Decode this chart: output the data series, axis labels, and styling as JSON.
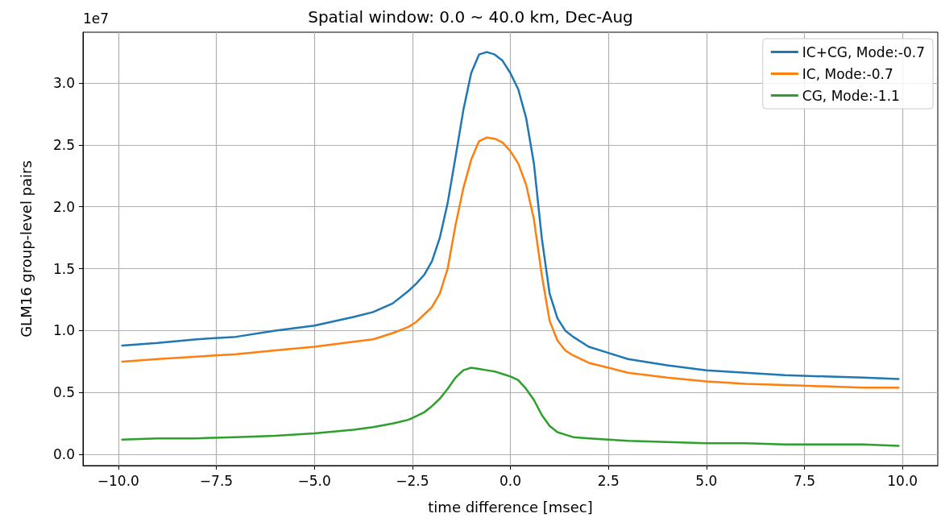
{
  "chart_data": {
    "type": "line",
    "title": "Spatial window: 0.0 ~ 40.0 km, Dec-Aug",
    "xlabel": "time difference [msec]",
    "ylabel": "GLM16 group-level pairs",
    "annotations": [
      "1e7"
    ],
    "x": [
      -9.9,
      -9,
      -8,
      -7,
      -6,
      -5,
      -4,
      -3.5,
      -3,
      -2.6,
      -2.4,
      -2.2,
      -2,
      -1.8,
      -1.6,
      -1.4,
      -1.2,
      -1,
      -0.8,
      -0.6,
      -0.4,
      -0.2,
      0,
      0.2,
      0.4,
      0.6,
      0.8,
      1,
      1.2,
      1.4,
      1.6,
      2,
      2.5,
      3,
      4,
      5,
      6,
      7,
      8,
      9,
      9.9
    ],
    "series": [
      {
        "name": "IC+CG, Mode:-0.7",
        "color": "#1f77b4",
        "values": [
          0.88,
          0.9,
          0.93,
          0.95,
          1.0,
          1.04,
          1.11,
          1.15,
          1.22,
          1.32,
          1.38,
          1.45,
          1.56,
          1.75,
          2.03,
          2.4,
          2.78,
          3.08,
          3.23,
          3.25,
          3.23,
          3.18,
          3.08,
          2.95,
          2.72,
          2.35,
          1.75,
          1.3,
          1.1,
          1.0,
          0.95,
          0.87,
          0.82,
          0.77,
          0.72,
          0.68,
          0.66,
          0.64,
          0.63,
          0.62,
          0.61
        ]
      },
      {
        "name": "IC, Mode:-0.7",
        "color": "#ff7f0e",
        "values": [
          0.75,
          0.77,
          0.79,
          0.81,
          0.84,
          0.87,
          0.91,
          0.93,
          0.98,
          1.03,
          1.07,
          1.13,
          1.19,
          1.3,
          1.5,
          1.85,
          2.15,
          2.38,
          2.53,
          2.56,
          2.55,
          2.52,
          2.45,
          2.35,
          2.18,
          1.9,
          1.45,
          1.08,
          0.92,
          0.84,
          0.8,
          0.74,
          0.7,
          0.66,
          0.62,
          0.59,
          0.57,
          0.56,
          0.55,
          0.54,
          0.54
        ]
      },
      {
        "name": "CG, Mode:-1.1",
        "color": "#2ca02c",
        "values": [
          0.12,
          0.13,
          0.13,
          0.14,
          0.15,
          0.17,
          0.2,
          0.22,
          0.25,
          0.28,
          0.31,
          0.34,
          0.39,
          0.45,
          0.53,
          0.62,
          0.68,
          0.7,
          0.69,
          0.68,
          0.67,
          0.65,
          0.63,
          0.6,
          0.53,
          0.44,
          0.32,
          0.23,
          0.18,
          0.16,
          0.14,
          0.13,
          0.12,
          0.11,
          0.1,
          0.09,
          0.09,
          0.08,
          0.08,
          0.08,
          0.07
        ]
      }
    ],
    "xlim": [
      -10.9,
      10.9
    ],
    "xticks": [
      {
        "value": -10,
        "label": "−10.0"
      },
      {
        "value": -7.5,
        "label": "−7.5"
      },
      {
        "value": -5,
        "label": "−5.0"
      },
      {
        "value": -2.5,
        "label": "−2.5"
      },
      {
        "value": 0,
        "label": "0.0"
      },
      {
        "value": 2.5,
        "label": "2.5"
      },
      {
        "value": 5,
        "label": "5.0"
      },
      {
        "value": 7.5,
        "label": "7.5"
      },
      {
        "value": 10,
        "label": "10.0"
      }
    ],
    "ylim": [
      -0.09,
      3.41
    ],
    "yticks": [
      {
        "value": 0,
        "label": "0.0"
      },
      {
        "value": 0.5,
        "label": "0.5"
      },
      {
        "value": 1,
        "label": "1.0"
      },
      {
        "value": 1.5,
        "label": "1.5"
      },
      {
        "value": 2,
        "label": "2.0"
      },
      {
        "value": 2.5,
        "label": "2.5"
      },
      {
        "value": 3,
        "label": "3.0"
      }
    ],
    "grid": true,
    "legend": "top right",
    "marker": "none",
    "line_style": "solid"
  }
}
